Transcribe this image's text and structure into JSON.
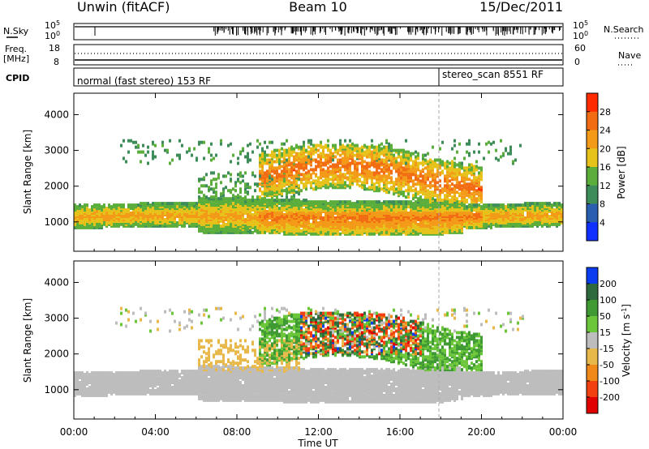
{
  "header": {
    "station": "Unwin (fitACF)",
    "beam": "Beam 10",
    "date": "15/Dec/2011"
  },
  "strip_labels": {
    "nsky": "N.Sky",
    "nsearch": "N.Search",
    "freq_line1": "Freq.",
    "freq_line2": "[MHz]",
    "nave": "Nave",
    "cpid": "CPID",
    "noise_ticks": [
      "10^5",
      "10^0"
    ],
    "freq_ticks": [
      "18",
      "8"
    ],
    "nave_ticks": [
      "60",
      "0"
    ]
  },
  "cpid": {
    "segments": [
      {
        "label": "normal (fast stereo) 153 RF",
        "start_hour": 0
      },
      {
        "label": "stereo_scan 8551 RF",
        "start_hour": 18
      }
    ]
  },
  "chart_data": [
    {
      "type": "heatmap",
      "title": "",
      "xlabel": "",
      "ylabel": "Slant Range [km]",
      "colorbar_label": "Power [dB]",
      "xlim": [
        0,
        24
      ],
      "ylim": [
        180,
        4600
      ],
      "x_ticks": [
        "00:00",
        "04:00",
        "08:00",
        "12:00",
        "16:00",
        "20:00",
        "00:00"
      ],
      "y_ticks": [
        1000,
        2000,
        3000,
        4000
      ],
      "colorbar_ticks": [
        4,
        8,
        12,
        16,
        20,
        24,
        28
      ],
      "colorbar_colors": [
        "#1030ff",
        "#2a5fb0",
        "#3d8c5a",
        "#5cae3c",
        "#e7c21a",
        "#f39a18",
        "#f26c14",
        "#ff2b00"
      ],
      "features": [
        {
          "name": "main band",
          "hours": [
            0,
            24
          ],
          "range_km": [
            800,
            1500
          ],
          "power_db": [
            10,
            22
          ]
        },
        {
          "name": "upper echoes",
          "hours": [
            9,
            20
          ],
          "range_km": [
            1600,
            3200
          ],
          "power_db": [
            16,
            30
          ]
        }
      ]
    },
    {
      "type": "heatmap",
      "title": "",
      "xlabel": "Time UT",
      "ylabel": "Slant Range [km]",
      "colorbar_label": "Velocity [m s^-1]",
      "xlim": [
        0,
        24
      ],
      "ylim": [
        180,
        4600
      ],
      "x_ticks": [
        "00:00",
        "04:00",
        "08:00",
        "12:00",
        "16:00",
        "20:00",
        "00:00"
      ],
      "y_ticks": [
        1000,
        2000,
        3000,
        4000
      ],
      "colorbar_ticks": [
        200,
        100,
        50,
        15,
        -15,
        -50,
        -100,
        -200
      ],
      "colorbar_colors": [
        "#0a3cf0",
        "#2f6a3f",
        "#3f9a34",
        "#6cc63a",
        "#bdbdbd",
        "#e9b84a",
        "#f0891a",
        "#f24010",
        "#e00000"
      ],
      "features": [
        {
          "name": "ground scatter",
          "hours": [
            0,
            24
          ],
          "range_km": [
            800,
            1600
          ],
          "velocity_ms": [
            -15,
            15
          ]
        },
        {
          "name": "ionospheric scatter",
          "hours": [
            11,
            17
          ],
          "range_km": [
            2000,
            3200
          ],
          "velocity_ms": [
            -200,
            200
          ]
        }
      ]
    }
  ]
}
